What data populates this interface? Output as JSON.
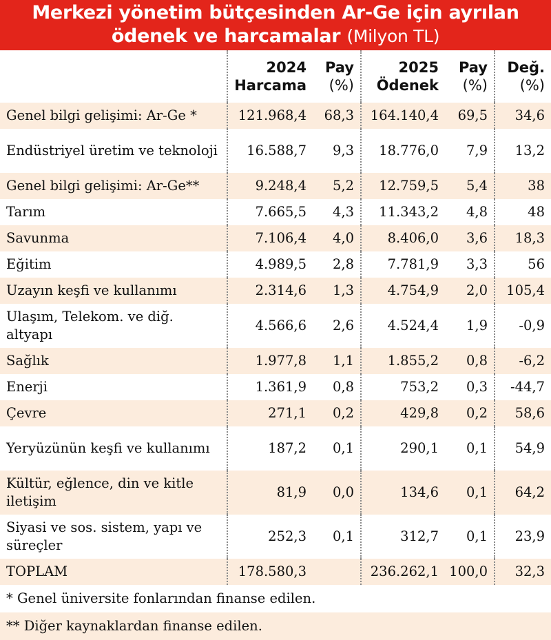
{
  "title": {
    "line1": "Merkezi yönetim bütçesinden Ar-Ge için ayrılan",
    "line2": "ödenek ve harcamalar",
    "unit": "(Milyon TL)"
  },
  "columns": [
    {
      "top": "2024",
      "bottom": "Harcama"
    },
    {
      "top": "Pay",
      "bottom": "(%)"
    },
    {
      "top": "2025",
      "bottom": "Ödenek"
    },
    {
      "top": "Pay",
      "bottom": "(%)"
    },
    {
      "top": "Değ.",
      "bottom": "(%)"
    }
  ],
  "rows": [
    {
      "label": "Genel bilgi gelişimi: Ar-Ge *",
      "c1": "121.968,4",
      "c2": "68,3",
      "c3": "164.140,4",
      "c4": "69,5",
      "c5": "34,6"
    },
    {
      "label": "Endüstriyel üretim ve teknoloji",
      "c1": "16.588,7",
      "c2": "9,3",
      "c3": "18.776,0",
      "c4": "7,9",
      "c5": "13,2"
    },
    {
      "label": "Genel bilgi gelişimi: Ar-Ge**",
      "c1": "9.248,4",
      "c2": "5,2",
      "c3": "12.759,5",
      "c4": "5,4",
      "c5": "38"
    },
    {
      "label": "Tarım",
      "c1": "7.665,5",
      "c2": "4,3",
      "c3": "11.343,2",
      "c4": "4,8",
      "c5": "48"
    },
    {
      "label": "Savunma",
      "c1": "7.106,4",
      "c2": "4,0",
      "c3": "8.406,0",
      "c4": "3,6",
      "c5": "18,3"
    },
    {
      "label": "Eğitim",
      "c1": "4.989,5",
      "c2": "2,8",
      "c3": "7.781,9",
      "c4": "3,3",
      "c5": "56"
    },
    {
      "label": "Uzayın keşfi ve kullanımı",
      "c1": "2.314,6",
      "c2": "1,3",
      "c3": "4.754,9",
      "c4": "2,0",
      "c5": "105,4"
    },
    {
      "label": "Ulaşım, Telekom. ve diğ. altyapı",
      "c1": "4.566,6",
      "c2": "2,6",
      "c3": "4.524,4",
      "c4": "1,9",
      "c5": "-0,9"
    },
    {
      "label": "Sağlık",
      "c1": "1.977,8",
      "c2": "1,1",
      "c3": "1.855,2",
      "c4": "0,8",
      "c5": "-6,2"
    },
    {
      "label": "Enerji",
      "c1": "1.361,9",
      "c2": "0,8",
      "c3": "753,2",
      "c4": "0,3",
      "c5": "-44,7"
    },
    {
      "label": "Çevre",
      "c1": "271,1",
      "c2": "0,2",
      "c3": "429,8",
      "c4": "0,2",
      "c5": "58,6"
    },
    {
      "label": "Yeryüzünün keşfi ve kullanımı",
      "c1": "187,2",
      "c2": "0,1",
      "c3": "290,1",
      "c4": "0,1",
      "c5": "54,9"
    },
    {
      "label": "Kültür, eğlence, din ve kitle iletişim",
      "c1": "81,9",
      "c2": "0,0",
      "c3": "134,6",
      "c4": "0,1",
      "c5": "64,2"
    },
    {
      "label": "Siyasi ve sos. sistem, yapı ve süreçler",
      "c1": "252,3",
      "c2": "0,1",
      "c3": "312,7",
      "c4": "0,1",
      "c5": "23,9"
    },
    {
      "label": "TOPLAM",
      "c1": "178.580,3",
      "c2": "",
      "c3": "236.262,1",
      "c4": "100,0",
      "c5": "32,3"
    }
  ],
  "notes": [
    "* Genel üniversite fonlarından finanse edilen.",
    "** Diğer kaynaklardan finanse edilen."
  ],
  "colors": {
    "header_red": "#e3251b",
    "row_tan": "#fcecdd",
    "row_white": "#ffffff"
  }
}
